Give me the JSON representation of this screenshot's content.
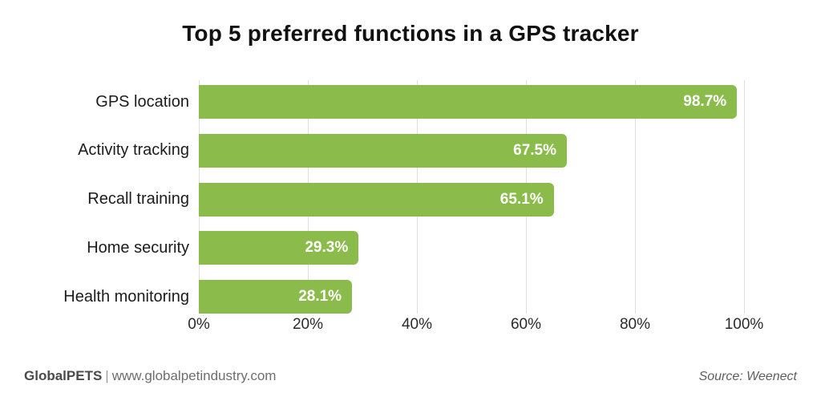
{
  "chart_data": {
    "type": "bar",
    "orientation": "horizontal",
    "title": "Top 5 preferred functions in a GPS tracker",
    "categories": [
      "GPS location",
      "Activity tracking",
      "Recall training",
      "Home security",
      "Health monitoring"
    ],
    "values": [
      98.7,
      67.5,
      65.1,
      29.3,
      28.1
    ],
    "value_labels": [
      "98.7%",
      "67.5%",
      "65.1%",
      "29.3%",
      "28.1%"
    ],
    "xlabel": "",
    "ylabel": "",
    "xlim": [
      0,
      100
    ],
    "x_ticks": [
      0,
      20,
      40,
      60,
      80,
      100
    ],
    "x_tick_labels": [
      "0%",
      "20%",
      "40%",
      "60%",
      "80%",
      "100%"
    ],
    "grid": "vertical-only",
    "legend": "none",
    "bar_color": "#8bbc4b",
    "value_label_color": "#ffffff",
    "gridline_color": "#dedede",
    "title_color": "#111111"
  },
  "footer": {
    "brand": "GlobalPETS",
    "separator": "|",
    "url": "www.globalpetindustry.com",
    "source": "Source: Weenect"
  }
}
